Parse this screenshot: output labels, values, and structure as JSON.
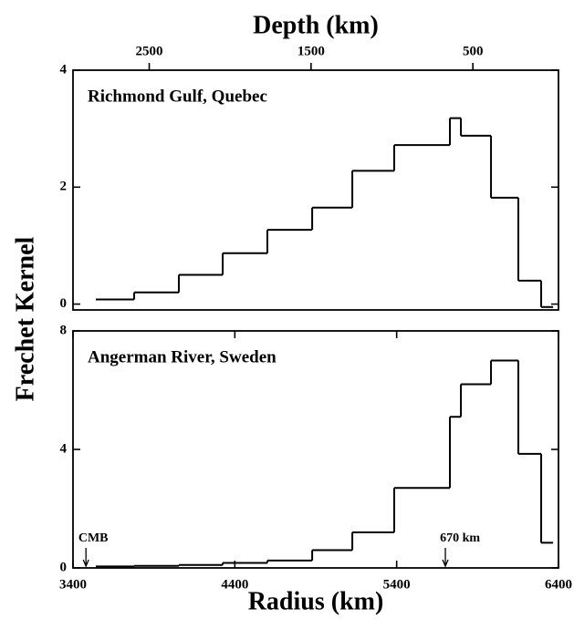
{
  "chart_data": [
    {
      "type": "histogram",
      "title": "Richmond Gulf, Quebec",
      "x2label": "Depth (km)",
      "ylabel": "Frechet Kernel",
      "xlim": [
        3400,
        6400
      ],
      "x2lim": [
        2971,
        -29
      ],
      "x2ticks": [
        2500,
        1500,
        500
      ],
      "ylim": [
        -0.1,
        4
      ],
      "yticks": [
        0,
        2,
        4
      ],
      "color": "#000000",
      "bins": [
        3541,
        3778,
        4054,
        4325,
        4601,
        4878,
        5126,
        5385,
        5729,
        5797,
        5983,
        6152,
        6293,
        6367
      ],
      "values": [
        0.08,
        0.2,
        0.5,
        0.87,
        1.27,
        1.65,
        2.28,
        2.72,
        3.18,
        2.88,
        1.82,
        0.4,
        -0.05
      ]
    },
    {
      "type": "histogram",
      "title": "Angerman River, Sweden",
      "xlabel": "Radius (km)",
      "xlim": [
        3400,
        6400
      ],
      "xticks": [
        3400,
        4400,
        5400,
        6400
      ],
      "ylim": [
        0,
        8
      ],
      "yticks": [
        0,
        4,
        8
      ],
      "color": "#000000",
      "bins": [
        3541,
        3778,
        4054,
        4325,
        4601,
        4878,
        5126,
        5385,
        5729,
        5797,
        5983,
        6152,
        6293,
        6367
      ],
      "values": [
        0.05,
        0.07,
        0.1,
        0.17,
        0.25,
        0.6,
        1.2,
        2.7,
        5.1,
        6.2,
        7.0,
        3.85,
        0.85
      ],
      "annotations": [
        {
          "text": "CMB",
          "x": 3480
        },
        {
          "text": "670 km",
          "x": 5701
        }
      ]
    }
  ]
}
